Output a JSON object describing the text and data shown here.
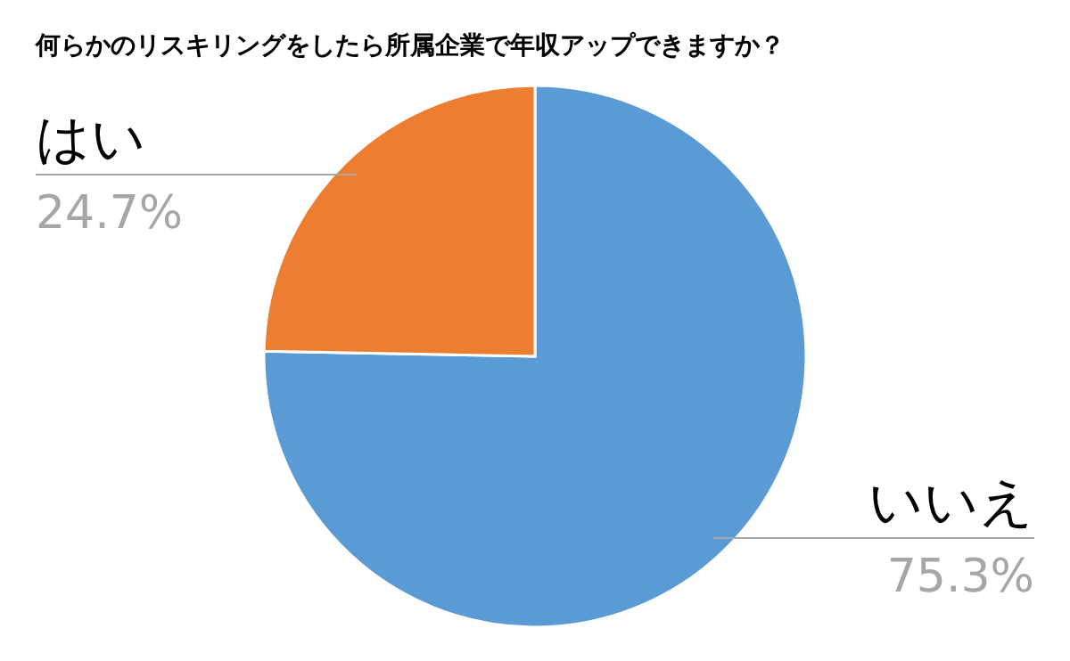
{
  "chart_data": {
    "type": "pie",
    "title": "何らかのリスキリングをしたら所属企業で年収アップできますか？",
    "categories": [
      "いいえ",
      "はい"
    ],
    "values": [
      75.3,
      24.7
    ],
    "colors": [
      "#5b9bd5",
      "#ed7d31"
    ],
    "value_labels": [
      "75.3%",
      "24.7%"
    ],
    "legend": false
  }
}
